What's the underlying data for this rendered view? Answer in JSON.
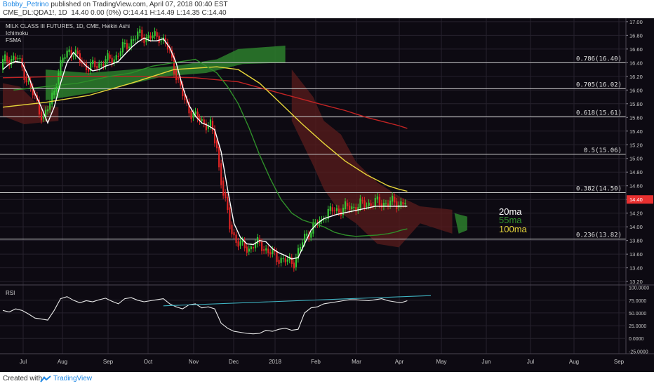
{
  "header": {
    "author": "Bobby_Petrino",
    "published": "published on TradingView.com, April 07, 2018 00:40 EST",
    "symbol": "CME_DL:QDA1!, 1D",
    "ohlc": "14.40 0.00 (0%) O:14.41 H:14.49 L:14.35 C:14.40"
  },
  "footer": {
    "created": "Created with",
    "brand": "TradingView"
  },
  "colors": {
    "background": "#0d0a12",
    "grid": "#26222d",
    "fib": "#c9c9c9",
    "ma20": "#ffffff",
    "ma55": "#2f8f2a",
    "ma100": "#e6d53a",
    "red_ma": "#c22424",
    "candle_up": "#37c837",
    "candle_down": "#e02424",
    "cloud_green": "#2d7f2d",
    "cloud_red": "#5a1c1c",
    "rsi": "#e8e8e8",
    "trendline": "#3fb5c4",
    "price_tag": "#e83030"
  },
  "chart_data": [
    {
      "type": "line",
      "title": "MILK CLASS III FUTURES, 1D, CME, Heikin Ashi",
      "indicators": [
        "Ichimoku",
        "FSMA"
      ],
      "x_ticks": [
        "Jul",
        "Aug",
        "Sep",
        "Oct",
        "Nov",
        "Dec",
        "2018",
        "Feb",
        "Mar",
        "Apr",
        "May",
        "Jun",
        "Jul",
        "Aug",
        "Sep"
      ],
      "y_ticks": [
        "17.00",
        "16.80",
        "16.60",
        "16.40",
        "16.20",
        "16.00",
        "15.80",
        "15.60",
        "15.40",
        "15.20",
        "15.00",
        "14.80",
        "14.60",
        "14.40",
        "14.20",
        "14.00",
        "13.80",
        "13.60",
        "13.40",
        "13.20"
      ],
      "ylim": [
        13.15,
        17.05
      ],
      "last_price": "14.40",
      "fib_levels": [
        {
          "label": "0.786(16.40)",
          "value": 16.4
        },
        {
          "label": "0.705(16.02)",
          "value": 16.02
        },
        {
          "label": "0.618(15.61)",
          "value": 15.61
        },
        {
          "label": "0.5(15.06)",
          "value": 15.06
        },
        {
          "label": "0.382(14.50)",
          "value": 14.5
        },
        {
          "label": "0.236(13.82)",
          "value": 13.82
        }
      ],
      "legend": [
        "20ma",
        "55ma",
        "100ma"
      ],
      "series": [
        {
          "name": "20ma",
          "t": [
            0,
            3,
            6,
            9,
            12,
            15,
            18,
            21,
            24,
            27,
            30,
            33,
            36,
            39,
            42,
            45,
            48,
            51,
            54,
            57,
            60,
            63,
            66,
            69,
            72,
            75,
            78,
            81,
            84,
            87,
            90,
            93,
            96,
            99,
            102,
            105,
            108,
            111,
            114,
            117,
            120,
            123,
            126,
            129,
            132,
            135,
            138,
            141,
            144,
            147,
            150,
            153,
            156,
            159,
            162,
            165,
            168,
            171,
            174,
            177,
            180,
            183,
            186,
            189
          ],
          "values": [
            16.3,
            16.38,
            16.42,
            16.4,
            16.2,
            15.95,
            15.75,
            15.52,
            15.75,
            16.1,
            16.4,
            16.55,
            16.45,
            16.35,
            16.28,
            16.3,
            16.35,
            16.38,
            16.42,
            16.52,
            16.62,
            16.7,
            16.76,
            16.72,
            16.72,
            16.75,
            16.62,
            16.4,
            16.05,
            15.78,
            15.62,
            15.52,
            15.48,
            15.42,
            15.1,
            14.55,
            14.05,
            13.85,
            13.75,
            13.74,
            13.8,
            13.78,
            13.68,
            13.62,
            13.58,
            13.53,
            13.55,
            13.75,
            13.95,
            14.05,
            14.12,
            14.15,
            14.18,
            14.2,
            14.22,
            14.24,
            14.26,
            14.28,
            14.3,
            14.3,
            14.3,
            14.3,
            14.3,
            14.3
          ]
        },
        {
          "name": "55ma",
          "t": [
            5,
            20,
            35,
            50,
            60,
            70,
            80,
            90,
            95,
            100,
            105,
            110,
            115,
            120,
            125,
            130,
            135,
            140,
            145,
            150,
            155,
            160,
            165,
            170,
            175,
            180,
            183,
            186,
            189
          ],
          "values": [
            16.0,
            16.05,
            16.1,
            16.2,
            16.25,
            16.35,
            16.4,
            16.45,
            16.35,
            16.25,
            16.05,
            15.8,
            15.45,
            15.05,
            14.7,
            14.4,
            14.2,
            14.1,
            14.05,
            14.0,
            13.92,
            13.88,
            13.86,
            13.87,
            13.88,
            13.9,
            13.92,
            13.95,
            13.97
          ]
        },
        {
          "name": "100ma",
          "t": [
            0,
            20,
            40,
            60,
            80,
            100,
            110,
            120,
            130,
            140,
            150,
            160,
            170,
            180,
            185,
            189
          ],
          "values": [
            15.75,
            15.82,
            15.92,
            16.1,
            16.3,
            16.34,
            16.3,
            16.1,
            15.8,
            15.5,
            15.22,
            14.96,
            14.76,
            14.6,
            14.55,
            14.52
          ]
        },
        {
          "name": "red_ma",
          "t": [
            0,
            30,
            60,
            90,
            110,
            130,
            150,
            160,
            170,
            180,
            185,
            189
          ],
          "values": [
            16.18,
            16.2,
            16.2,
            16.18,
            16.12,
            15.95,
            15.78,
            15.7,
            15.6,
            15.52,
            15.48,
            15.44
          ]
        }
      ]
    },
    {
      "type": "line",
      "title": "RSI",
      "y_ticks": [
        "100.0000",
        "75.0000",
        "50.0000",
        "25.0000",
        "0.0000",
        "-25.0000"
      ],
      "ylim": [
        -30,
        105
      ],
      "series": [
        {
          "name": "RSI",
          "t": [
            0,
            3,
            6,
            9,
            12,
            15,
            18,
            21,
            24,
            27,
            30,
            33,
            36,
            39,
            42,
            45,
            48,
            51,
            54,
            57,
            60,
            63,
            66,
            69,
            72,
            75,
            78,
            81,
            84,
            87,
            90,
            93,
            96,
            99,
            102,
            105,
            108,
            111,
            114,
            117,
            120,
            123,
            126,
            129,
            132,
            135,
            138,
            141,
            144,
            147,
            150,
            153,
            156,
            159,
            162,
            165,
            168,
            171,
            174,
            177,
            180,
            183,
            186,
            189
          ],
          "values": [
            55,
            52,
            58,
            55,
            48,
            40,
            38,
            36,
            55,
            78,
            82,
            75,
            70,
            74,
            72,
            76,
            79,
            73,
            68,
            78,
            80,
            75,
            72,
            74,
            76,
            78,
            68,
            62,
            58,
            66,
            68,
            60,
            62,
            58,
            30,
            20,
            14,
            12,
            10,
            9,
            10,
            16,
            14,
            18,
            20,
            16,
            18,
            50,
            60,
            62,
            68,
            70,
            72,
            74,
            76,
            76,
            75,
            74,
            76,
            78,
            74,
            72,
            70,
            74
          ]
        },
        {
          "name": "trendline",
          "t": [
            75,
            200
          ],
          "values": [
            64,
            84
          ]
        }
      ]
    }
  ]
}
